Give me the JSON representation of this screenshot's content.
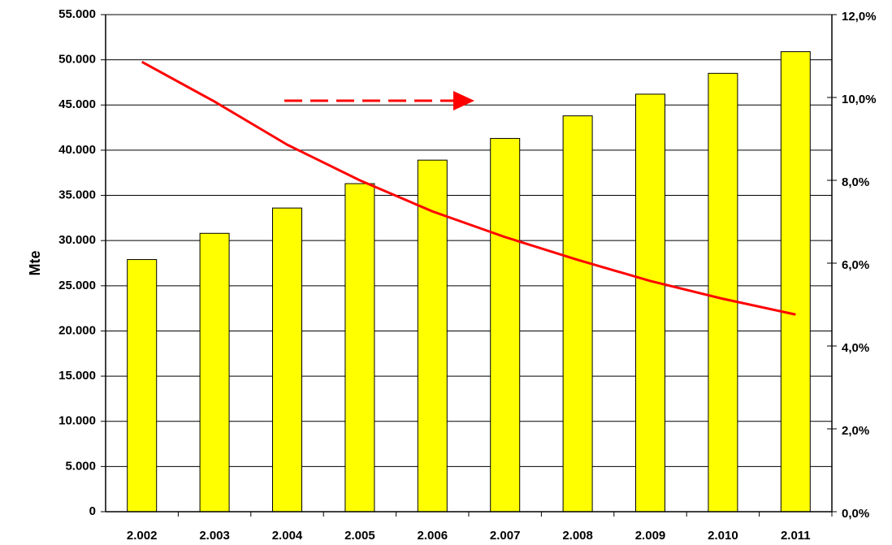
{
  "chart_data": {
    "type": "bar",
    "y_label": "Mte",
    "categories": [
      "2.002",
      "2.003",
      "2.004",
      "2.005",
      "2.006",
      "2.007",
      "2.008",
      "2.009",
      "2.010",
      "2.011"
    ],
    "series": [
      {
        "type": "bar",
        "color": "#ffff00",
        "values": [
          27900,
          30800,
          33600,
          36300,
          38900,
          41300,
          43800,
          46200,
          48500,
          50900
        ]
      },
      {
        "type": "line",
        "axis": "y2",
        "color": "#ff0000",
        "values": [
          10.86,
          9.9,
          8.86,
          8.0,
          7.25,
          6.63,
          6.08,
          5.57,
          5.14,
          4.76
        ]
      }
    ],
    "ylim": [
      0,
      55000
    ],
    "yticks": [
      0,
      {
        "value": 5000,
        "label": "5.000"
      },
      {
        "value": 10000,
        "label": "10.000"
      },
      {
        "value": 15000,
        "label": "15.000"
      },
      {
        "value": 20000,
        "label": "20.000"
      },
      {
        "value": 25000,
        "label": "25.000"
      },
      {
        "value": 30000,
        "label": "30.000"
      },
      {
        "value": 35000,
        "label": "35.000"
      },
      {
        "value": 40000,
        "label": "40.000"
      },
      {
        "value": 45000,
        "label": "45.000"
      },
      {
        "value": 50000,
        "label": "50.000"
      },
      {
        "value": 55000,
        "label": "55.000"
      }
    ],
    "y2lim": [
      0,
      12
    ],
    "y2ticks": [
      {
        "value": 0,
        "label": "0,0%"
      },
      {
        "value": 2,
        "label": "2,0%"
      },
      {
        "value": 4,
        "label": "4,0%"
      },
      {
        "value": 6,
        "label": "6,0%"
      },
      {
        "value": 8,
        "label": "8,0%"
      },
      {
        "value": 10,
        "label": "10,0%"
      },
      {
        "value": 12,
        "label": "12,0%"
      }
    ],
    "grid": true
  }
}
